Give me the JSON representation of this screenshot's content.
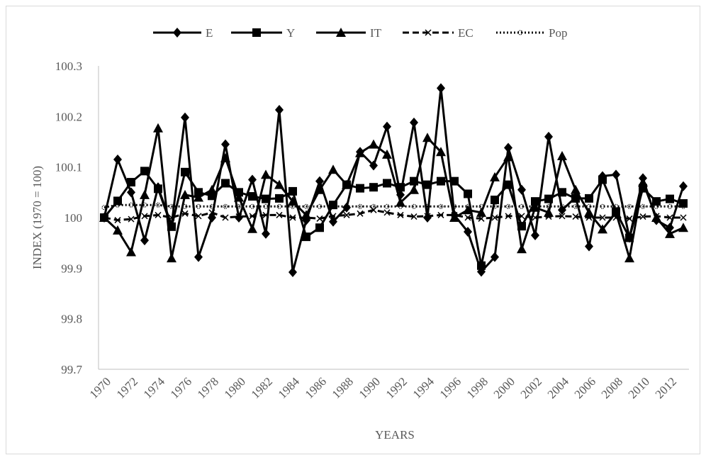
{
  "chart_data": {
    "type": "line",
    "xlabel": "YEARS",
    "ylabel": "INDEX (1970 = 100)",
    "ylim": [
      99.7,
      100.3
    ],
    "yticks": [
      "99.7",
      "99.8",
      "99.9",
      "100",
      "100.1",
      "100.2",
      "100.3"
    ],
    "ytick_values": [
      99.7,
      99.8,
      99.9,
      100,
      100.1,
      100.2,
      100.3
    ],
    "x": [
      1970,
      1971,
      1972,
      1973,
      1974,
      1975,
      1976,
      1977,
      1978,
      1979,
      1980,
      1981,
      1982,
      1983,
      1984,
      1985,
      1986,
      1987,
      1988,
      1989,
      1990,
      1991,
      1992,
      1993,
      1994,
      1995,
      1996,
      1997,
      1998,
      1999,
      2000,
      2001,
      2002,
      2003,
      2004,
      2005,
      2006,
      2007,
      2008,
      2009,
      2010,
      2011,
      2012,
      2013
    ],
    "xtick_labels": [
      "1970",
      "1972",
      "1974",
      "1976",
      "1978",
      "1980",
      "1982",
      "1984",
      "1986",
      "1988",
      "1990",
      "1992",
      "1994",
      "1996",
      "1998",
      "2000",
      "2002",
      "2004",
      "2006",
      "2008",
      "2010",
      "2012"
    ],
    "legend_position": "top",
    "grid": false,
    "series": [
      {
        "name": "E",
        "style": "solid",
        "marker": "diamond",
        "values": [
          100.0,
          100.115,
          100.05,
          99.955,
          100.06,
          99.985,
          100.198,
          99.922,
          100.0,
          100.145,
          100.0,
          100.075,
          99.968,
          100.213,
          99.892,
          99.995,
          100.072,
          99.992,
          100.02,
          100.13,
          100.103,
          100.18,
          100.045,
          100.188,
          100.0,
          100.256,
          100.005,
          99.972,
          99.893,
          99.922,
          100.138,
          100.055,
          99.965,
          100.16,
          100.015,
          100.04,
          99.943,
          100.082,
          100.085,
          99.96,
          100.078,
          99.995,
          99.98,
          100.062
        ]
      },
      {
        "name": "Y",
        "style": "solid",
        "marker": "square",
        "values": [
          100.0,
          100.033,
          100.07,
          100.092,
          100.057,
          99.982,
          100.09,
          100.05,
          100.043,
          100.068,
          100.05,
          100.042,
          100.037,
          100.038,
          100.052,
          99.962,
          99.98,
          100.025,
          100.065,
          100.058,
          100.06,
          100.068,
          100.06,
          100.072,
          100.065,
          100.072,
          100.072,
          100.047,
          99.905,
          100.035,
          100.065,
          99.983,
          100.032,
          100.037,
          100.05,
          100.038,
          100.038,
          100.075,
          100.012,
          99.96,
          100.058,
          100.032,
          100.037,
          100.028
        ]
      },
      {
        "name": "IT",
        "style": "solid",
        "marker": "triangle",
        "values": [
          100.0,
          99.975,
          99.932,
          100.045,
          100.177,
          99.92,
          100.045,
          100.04,
          100.055,
          100.118,
          100.04,
          99.978,
          100.085,
          100.065,
          100.032,
          100.005,
          100.055,
          100.095,
          100.065,
          100.128,
          100.145,
          100.125,
          100.03,
          100.055,
          100.158,
          100.13,
          100.0,
          100.015,
          100.01,
          100.08,
          100.12,
          99.938,
          100.02,
          100.01,
          100.122,
          100.055,
          100.01,
          99.977,
          100.01,
          99.92,
          100.07,
          100.0,
          99.968,
          99.98
        ]
      },
      {
        "name": "EC",
        "style": "dashed",
        "marker": "x",
        "values": [
          100.0,
          99.995,
          99.997,
          100.003,
          100.005,
          100.0,
          100.008,
          100.003,
          100.01,
          100.0,
          100.002,
          100.003,
          100.005,
          100.005,
          100.0,
          100.0,
          99.998,
          100.003,
          100.005,
          100.008,
          100.015,
          100.01,
          100.005,
          100.002,
          100.003,
          100.005,
          100.005,
          100.0,
          99.998,
          100.0,
          100.003,
          100.003,
          100.0,
          100.002,
          100.003,
          100.002,
          100.0,
          100.0,
          100.0,
          99.998,
          100.002,
          100.003,
          100.0,
          100.0
        ]
      },
      {
        "name": "Pop",
        "style": "dotted",
        "marker": "circle",
        "values": [
          100.02,
          100.025,
          100.025,
          100.025,
          100.025,
          100.022,
          100.022,
          100.022,
          100.022,
          100.022,
          100.022,
          100.022,
          100.022,
          100.022,
          100.022,
          100.022,
          100.022,
          100.022,
          100.022,
          100.022,
          100.022,
          100.022,
          100.022,
          100.022,
          100.022,
          100.022,
          100.022,
          100.022,
          100.022,
          100.022,
          100.022,
          100.022,
          100.022,
          100.022,
          100.022,
          100.022,
          100.022,
          100.022,
          100.022,
          100.022,
          100.022,
          100.022,
          100.022,
          100.022
        ]
      }
    ]
  }
}
